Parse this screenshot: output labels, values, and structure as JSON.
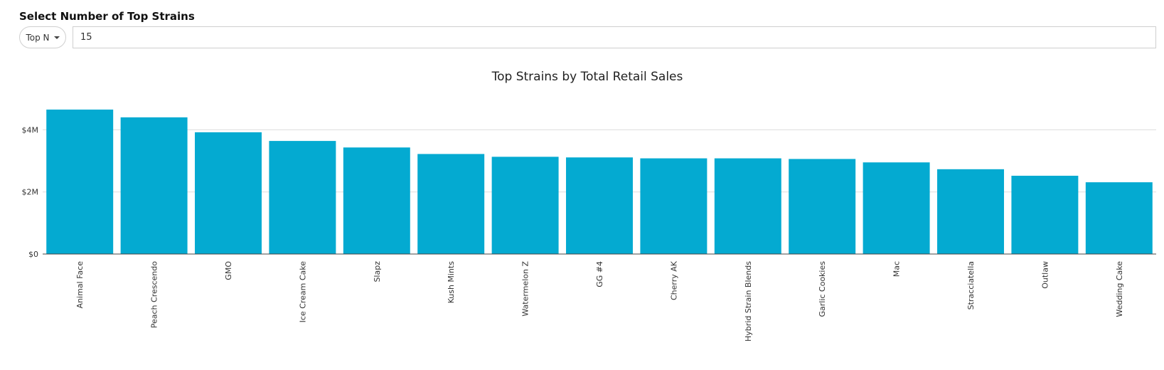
{
  "controls": {
    "section_title": "Select Number of Top Strains",
    "mode_label": "Top N",
    "top_n_value": "15"
  },
  "colors": {
    "bar": "#04AAD1",
    "axis": "#444444",
    "grid": "#dddddd",
    "text": "#333333"
  },
  "chart_data": {
    "type": "bar",
    "title": "Top Strains by Total Retail Sales",
    "xlabel": "",
    "ylabel": "",
    "categories": [
      "Animal Face",
      "Peach Crescendo",
      "GMO",
      "Ice Cream Cake",
      "Slapz",
      "Kush Mints",
      "Watermelon Z",
      "GG #4",
      "Cherry AK",
      "Hybrid Strain Blends",
      "Garlic Cookies",
      "Mac",
      "Stracciatella",
      "Outlaw",
      "Wedding Cake"
    ],
    "values": [
      4650000,
      4400000,
      3920000,
      3640000,
      3430000,
      3220000,
      3130000,
      3110000,
      3080000,
      3080000,
      3060000,
      2950000,
      2730000,
      2520000,
      2310000
    ],
    "ylim": [
      0,
      4650000
    ],
    "yticks": [
      {
        "value": 0,
        "label": "$0"
      },
      {
        "value": 2000000,
        "label": "$2M"
      },
      {
        "value": 4000000,
        "label": "$4M"
      }
    ],
    "grid": true,
    "legend": "none"
  }
}
